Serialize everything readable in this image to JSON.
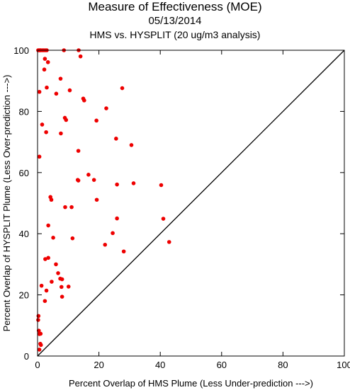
{
  "chart_data": {
    "type": "scatter",
    "title": "Measure of Effectiveness (MOE)",
    "date": "05/13/2014",
    "subtitle": "HMS vs. HYSPLIT  (20 ug/m3 analysis)",
    "xlabel": "Percent Overlap of HMS Plume (Less Under-prediction --->)",
    "ylabel": "Percent Overlap of HYSPLIT Plume (Less Over-prediction --->)",
    "xlim": [
      0,
      100
    ],
    "ylim": [
      0,
      100
    ],
    "xticks": [
      "0",
      "20",
      "40",
      "60",
      "80",
      "100"
    ],
    "yticks": [
      "0",
      "20",
      "40",
      "60",
      "80",
      "100"
    ],
    "grid": false,
    "reference_line": "y = x",
    "point_color": "#ee0000",
    "line_color": "#000000",
    "points": [
      [
        0.2,
        100
      ],
      [
        0.5,
        100
      ],
      [
        1.0,
        100
      ],
      [
        1.5,
        100
      ],
      [
        2.0,
        100
      ],
      [
        2.5,
        100
      ],
      [
        3.0,
        100
      ],
      [
        0.8,
        100
      ],
      [
        8.6,
        100
      ],
      [
        13.4,
        100
      ],
      [
        14.0,
        98
      ],
      [
        2.4,
        97.2
      ],
      [
        3.4,
        96.1
      ],
      [
        2.2,
        93.7
      ],
      [
        7.5,
        90.7
      ],
      [
        3.0,
        87.8
      ],
      [
        10.5,
        86.9
      ],
      [
        27.6,
        87.6
      ],
      [
        0.6,
        86.4
      ],
      [
        6.1,
        85.8
      ],
      [
        14.9,
        84.2
      ],
      [
        15.2,
        83.6
      ],
      [
        22.4,
        81.0
      ],
      [
        8.9,
        77.9
      ],
      [
        9.3,
        77.2
      ],
      [
        19.2,
        77.0
      ],
      [
        1.5,
        75.7
      ],
      [
        2.8,
        73.2
      ],
      [
        7.6,
        72.8
      ],
      [
        25.6,
        71.1
      ],
      [
        30.6,
        69.0
      ],
      [
        13.3,
        67.1
      ],
      [
        0.6,
        65.2
      ],
      [
        16.6,
        59.3
      ],
      [
        18.4,
        57.6
      ],
      [
        13.1,
        57.6
      ],
      [
        13.3,
        57.4
      ],
      [
        31.3,
        56.5
      ],
      [
        25.9,
        56.1
      ],
      [
        40.3,
        55.9
      ],
      [
        4.2,
        52.0
      ],
      [
        4.5,
        51.1
      ],
      [
        19.3,
        51.1
      ],
      [
        9.0,
        48.7
      ],
      [
        11.1,
        48.7
      ],
      [
        41.0,
        44.9
      ],
      [
        25.9,
        45.0
      ],
      [
        3.5,
        42.7
      ],
      [
        24.5,
        40.2
      ],
      [
        5.1,
        38.7
      ],
      [
        11.4,
        38.5
      ],
      [
        42.9,
        37.3
      ],
      [
        22.0,
        36.4
      ],
      [
        28.1,
        34.2
      ],
      [
        3.5,
        32.1
      ],
      [
        2.5,
        31.7
      ],
      [
        6.0,
        30.0
      ],
      [
        6.7,
        27.1
      ],
      [
        7.4,
        25.3
      ],
      [
        8.0,
        25.1
      ],
      [
        4.6,
        24.3
      ],
      [
        1.3,
        23.0
      ],
      [
        7.8,
        22.6
      ],
      [
        10.1,
        22.7
      ],
      [
        2.9,
        21.4
      ],
      [
        8.0,
        19.4
      ],
      [
        2.4,
        18.0
      ],
      [
        0.3,
        13.1
      ],
      [
        0.2,
        11.8
      ],
      [
        0.4,
        8.3
      ],
      [
        1.0,
        7.3
      ],
      [
        0.6,
        7.2
      ],
      [
        0.9,
        4.0
      ],
      [
        1.1,
        3.6
      ],
      [
        0.6,
        2.1
      ]
    ]
  }
}
